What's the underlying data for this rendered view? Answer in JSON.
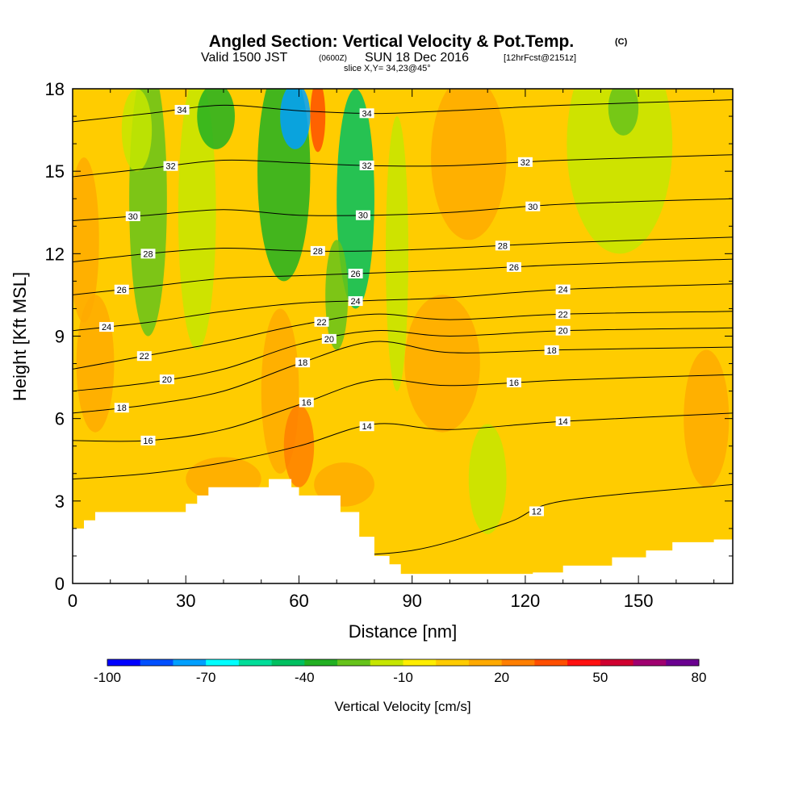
{
  "chart_data": {
    "type": "heatmap",
    "title": "Angled Section: Vertical Velocity & Pot.Temp.",
    "title_unit": "(C)",
    "subtitle_valid": "Valid 1500 JST",
    "subtitle_utc": "(0600Z)",
    "subtitle_date": "SUN 18 Dec 2016",
    "subtitle_fcst": "[12hrFcst@2151z]",
    "slice_label": "slice X,Y= 34,23@45°",
    "xlabel": "Distance [nm]",
    "ylabel": "Height [Kft MSL]",
    "xlim": [
      0,
      175
    ],
    "ylim": [
      0,
      18
    ],
    "x_ticks": [
      0,
      30,
      60,
      90,
      120,
      150
    ],
    "y_ticks": [
      0,
      3,
      6,
      9,
      12,
      15,
      18
    ],
    "colorbar": {
      "label": "Vertical Velocity [cm/s]",
      "tick_labels": [
        "-100",
        "-70",
        "-40",
        "-10",
        "20",
        "50",
        "80"
      ],
      "range": [
        -100,
        80
      ],
      "colors": [
        "#0000ff",
        "#0050ff",
        "#00a0ff",
        "#00ffff",
        "#00dd99",
        "#00c060",
        "#22b022",
        "#66c31a",
        "#c6e600",
        "#ffee00",
        "#ffcc00",
        "#ffaa00",
        "#ff7f00",
        "#ff4f00",
        "#ff1010",
        "#d00030",
        "#a00070",
        "#6a0090"
      ]
    },
    "background_value_cm_s": 0,
    "terrain": [
      [
        0,
        2
      ],
      [
        3,
        2
      ],
      [
        3,
        2.3
      ],
      [
        6,
        2.3
      ],
      [
        6,
        2.6
      ],
      [
        30,
        2.6
      ],
      [
        30,
        2.9
      ],
      [
        33,
        2.9
      ],
      [
        33,
        3.2
      ],
      [
        36,
        3.2
      ],
      [
        36,
        3.5
      ],
      [
        52,
        3.5
      ],
      [
        52,
        3.8
      ],
      [
        58,
        3.8
      ],
      [
        58,
        3.5
      ],
      [
        60,
        3.5
      ],
      [
        60,
        3.2
      ],
      [
        71,
        3.2
      ],
      [
        71,
        2.6
      ],
      [
        76,
        2.6
      ],
      [
        76,
        1.7
      ],
      [
        80,
        1.7
      ],
      [
        80,
        1
      ],
      [
        84,
        1
      ],
      [
        84,
        0.7
      ],
      [
        87,
        0.7
      ],
      [
        87,
        0.35
      ],
      [
        122,
        0.35
      ],
      [
        122,
        0.4
      ],
      [
        130,
        0.4
      ],
      [
        130,
        0.65
      ],
      [
        143,
        0.65
      ],
      [
        143,
        0.95
      ],
      [
        152,
        0.95
      ],
      [
        152,
        1.2
      ],
      [
        159,
        1.2
      ],
      [
        159,
        1.5
      ],
      [
        170,
        1.5
      ],
      [
        170,
        1.6
      ],
      [
        175,
        1.6
      ]
    ],
    "velocity_features": [
      {
        "x": 20,
        "y": 14,
        "rx": 5,
        "ry": 5,
        "value": -30
      },
      {
        "x": 17,
        "y": 16.5,
        "rx": 4,
        "ry": 1.5,
        "value": -20
      },
      {
        "x": 33,
        "y": 13.5,
        "rx": 5,
        "ry": 5,
        "value": -15
      },
      {
        "x": 38,
        "y": 17,
        "rx": 5,
        "ry": 1.2,
        "value": -35
      },
      {
        "x": 56,
        "y": 15,
        "rx": 7,
        "ry": 4,
        "value": -40
      },
      {
        "x": 59,
        "y": 17,
        "rx": 4,
        "ry": 1.2,
        "value": -80
      },
      {
        "x": 75,
        "y": 14,
        "rx": 5,
        "ry": 4,
        "value": -45
      },
      {
        "x": 70,
        "y": 10.5,
        "rx": 3,
        "ry": 2,
        "value": -30
      },
      {
        "x": 86,
        "y": 12,
        "rx": 3,
        "ry": 5,
        "value": -15
      },
      {
        "x": 110,
        "y": 3.8,
        "rx": 5,
        "ry": 2,
        "value": -15
      },
      {
        "x": 145,
        "y": 16,
        "rx": 14,
        "ry": 4,
        "value": -15
      },
      {
        "x": 146,
        "y": 17.3,
        "rx": 4,
        "ry": 1,
        "value": -30
      },
      {
        "x": 6,
        "y": 8,
        "rx": 5,
        "ry": 2.5,
        "value": 15
      },
      {
        "x": 3,
        "y": 12.5,
        "rx": 4,
        "ry": 3,
        "value": 10
      },
      {
        "x": 55,
        "y": 7,
        "rx": 5,
        "ry": 3,
        "value": 15
      },
      {
        "x": 60,
        "y": 5,
        "rx": 4,
        "ry": 1.5,
        "value": 25
      },
      {
        "x": 65,
        "y": 17,
        "rx": 2,
        "ry": 1.3,
        "value": 30
      },
      {
        "x": 105,
        "y": 15.5,
        "rx": 10,
        "ry": 3,
        "value": 12
      },
      {
        "x": 98,
        "y": 8,
        "rx": 10,
        "ry": 2.5,
        "value": 12
      },
      {
        "x": 40,
        "y": 3.8,
        "rx": 10,
        "ry": 0.8,
        "value": 12
      },
      {
        "x": 72,
        "y": 3.6,
        "rx": 8,
        "ry": 0.8,
        "value": 12
      },
      {
        "x": 168,
        "y": 6,
        "rx": 6,
        "ry": 2.5,
        "value": 10
      }
    ],
    "contour_levels": [
      {
        "level": 12,
        "label": "12",
        "curve": [
          [
            0,
            0.8
          ],
          [
            15,
            0.9
          ],
          [
            60,
            1.0
          ],
          [
            90,
            1.2
          ],
          [
            115,
            2.2
          ],
          [
            130,
            3.0
          ],
          [
            175,
            3.6
          ]
        ],
        "labels_x": [
          123
        ]
      },
      {
        "level": 14,
        "label": "14",
        "curve": [
          [
            0,
            3.8
          ],
          [
            20,
            4.0
          ],
          [
            40,
            4.4
          ],
          [
            60,
            5.0
          ],
          [
            80,
            5.8
          ],
          [
            100,
            5.6
          ],
          [
            130,
            5.9
          ],
          [
            175,
            6.2
          ]
        ],
        "labels_x": [
          78,
          130
        ]
      },
      {
        "level": 16,
        "label": "16",
        "curve": [
          [
            0,
            5.2
          ],
          [
            20,
            5.2
          ],
          [
            40,
            5.6
          ],
          [
            60,
            6.5
          ],
          [
            80,
            7.4
          ],
          [
            100,
            7.2
          ],
          [
            130,
            7.4
          ],
          [
            175,
            7.6
          ]
        ],
        "labels_x": [
          20,
          62,
          117
        ]
      },
      {
        "level": 18,
        "label": "18",
        "curve": [
          [
            0,
            6.2
          ],
          [
            20,
            6.5
          ],
          [
            40,
            7.0
          ],
          [
            60,
            8.0
          ],
          [
            80,
            8.8
          ],
          [
            100,
            8.4
          ],
          [
            130,
            8.5
          ],
          [
            175,
            8.6
          ]
        ],
        "labels_x": [
          13,
          61,
          127
        ]
      },
      {
        "level": 20,
        "label": "20",
        "curve": [
          [
            0,
            7.0
          ],
          [
            20,
            7.3
          ],
          [
            40,
            7.8
          ],
          [
            60,
            8.7
          ],
          [
            80,
            9.2
          ],
          [
            100,
            9.0
          ],
          [
            130,
            9.2
          ],
          [
            175,
            9.3
          ]
        ],
        "labels_x": [
          25,
          68,
          130
        ]
      },
      {
        "level": 22,
        "label": "22",
        "curve": [
          [
            0,
            7.8
          ],
          [
            20,
            8.3
          ],
          [
            40,
            8.8
          ],
          [
            60,
            9.4
          ],
          [
            80,
            9.8
          ],
          [
            100,
            9.6
          ],
          [
            130,
            9.8
          ],
          [
            175,
            9.9
          ]
        ],
        "labels_x": [
          19,
          66,
          130
        ]
      },
      {
        "level": 24,
        "label": "24",
        "curve": [
          [
            0,
            9.2
          ],
          [
            20,
            9.5
          ],
          [
            40,
            9.9
          ],
          [
            60,
            10.2
          ],
          [
            80,
            10.3
          ],
          [
            100,
            10.4
          ],
          [
            130,
            10.7
          ],
          [
            175,
            10.9
          ]
        ],
        "labels_x": [
          9,
          75,
          130
        ]
      },
      {
        "level": 26,
        "label": "26",
        "curve": [
          [
            0,
            10.5
          ],
          [
            20,
            10.8
          ],
          [
            40,
            11.1
          ],
          [
            60,
            11.2
          ],
          [
            80,
            11.3
          ],
          [
            100,
            11.4
          ],
          [
            130,
            11.6
          ],
          [
            175,
            11.8
          ]
        ],
        "labels_x": [
          13,
          75,
          117
        ]
      },
      {
        "level": 28,
        "label": "28",
        "curve": [
          [
            0,
            11.7
          ],
          [
            20,
            12.0
          ],
          [
            40,
            12.2
          ],
          [
            60,
            12.1
          ],
          [
            80,
            12.1
          ],
          [
            100,
            12.2
          ],
          [
            130,
            12.4
          ],
          [
            175,
            12.6
          ]
        ],
        "labels_x": [
          20,
          65,
          114
        ]
      },
      {
        "level": 30,
        "label": "30",
        "curve": [
          [
            0,
            13.2
          ],
          [
            20,
            13.4
          ],
          [
            40,
            13.6
          ],
          [
            60,
            13.4
          ],
          [
            80,
            13.4
          ],
          [
            100,
            13.5
          ],
          [
            130,
            13.8
          ],
          [
            175,
            14.0
          ]
        ],
        "labels_x": [
          16,
          77,
          122
        ]
      },
      {
        "level": 32,
        "label": "32",
        "curve": [
          [
            0,
            14.8
          ],
          [
            20,
            15.1
          ],
          [
            40,
            15.4
          ],
          [
            60,
            15.3
          ],
          [
            80,
            15.2
          ],
          [
            100,
            15.2
          ],
          [
            130,
            15.4
          ],
          [
            175,
            15.6
          ]
        ],
        "labels_x": [
          26,
          78,
          120
        ]
      },
      {
        "level": 34,
        "label": "34",
        "curve": [
          [
            0,
            16.8
          ],
          [
            20,
            17.1
          ],
          [
            40,
            17.4
          ],
          [
            60,
            17.2
          ],
          [
            80,
            17.1
          ],
          [
            100,
            17.2
          ],
          [
            130,
            17.4
          ],
          [
            175,
            17.6
          ]
        ],
        "labels_x": [
          29,
          78
        ]
      }
    ]
  }
}
